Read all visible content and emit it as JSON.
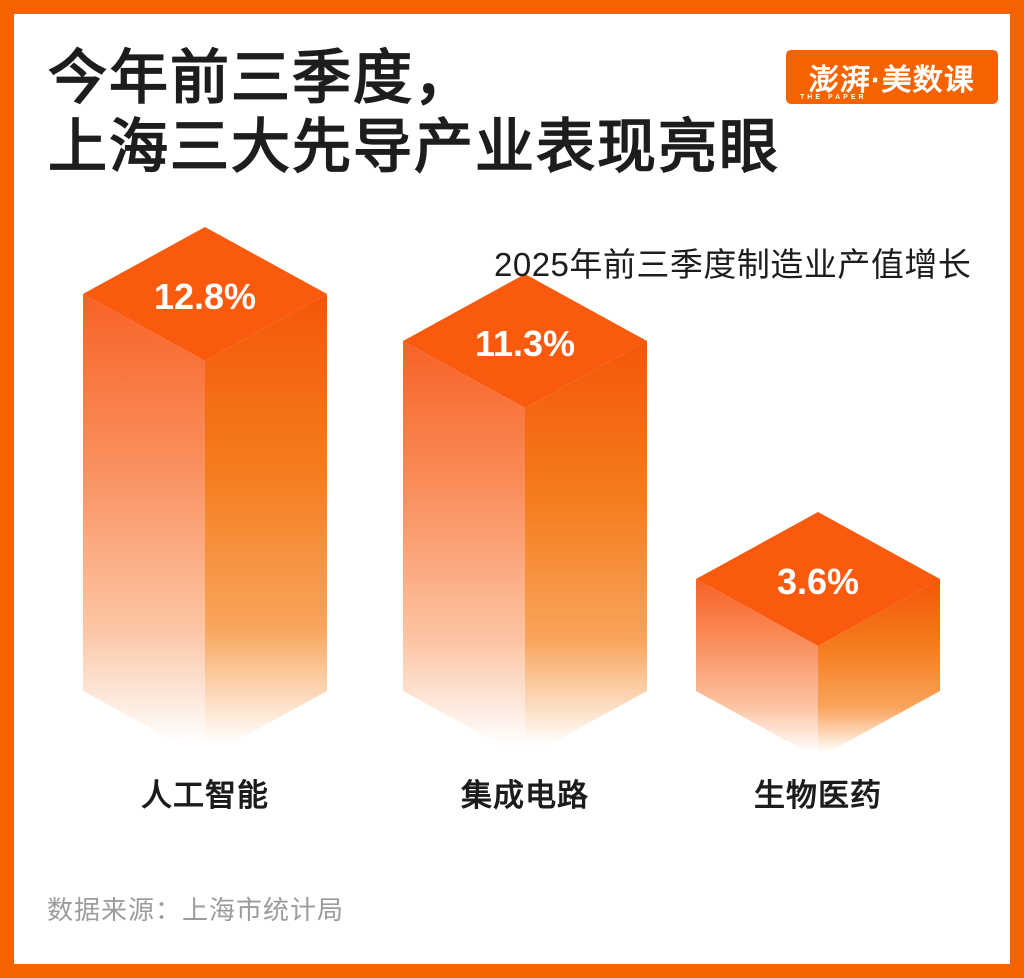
{
  "header": {
    "title_line1": "今年前三季度，",
    "title_line2": "上海三大先导产业表现亮眼",
    "logo": {
      "cn": "澎湃·美数课",
      "en": "THE PAPER",
      "bg_color": "#f46300"
    }
  },
  "chart_data": {
    "type": "bar",
    "variant": "isometric-3d-columns",
    "title": "2025年前三季度制造业产值增长",
    "categories": [
      "人工智能",
      "集成电路",
      "生物医药"
    ],
    "values": [
      12.8,
      11.3,
      3.6
    ],
    "value_labels": [
      "12.8%",
      "11.3%",
      "3.6%"
    ],
    "unit": "%",
    "grid": false,
    "legend": "none",
    "colors": {
      "top_face": "#fa5a0e",
      "left_face_stops": [
        "#f86226",
        "#fa9160",
        "#fcc5a4",
        "#ffffff"
      ],
      "right_face_stops": [
        "#f35708",
        "#f57c1e",
        "#f9a55c",
        "#ffffff"
      ],
      "value_text": "#ffffff"
    }
  },
  "footer": {
    "source": "数据来源：上海市统计局"
  },
  "colors": {
    "frame": "#f46300",
    "title_text": "#1d1d1d",
    "subtitle_text": "#1d1d1d",
    "category_text": "#1c1c1c",
    "source_text": "#9c9c9c"
  }
}
